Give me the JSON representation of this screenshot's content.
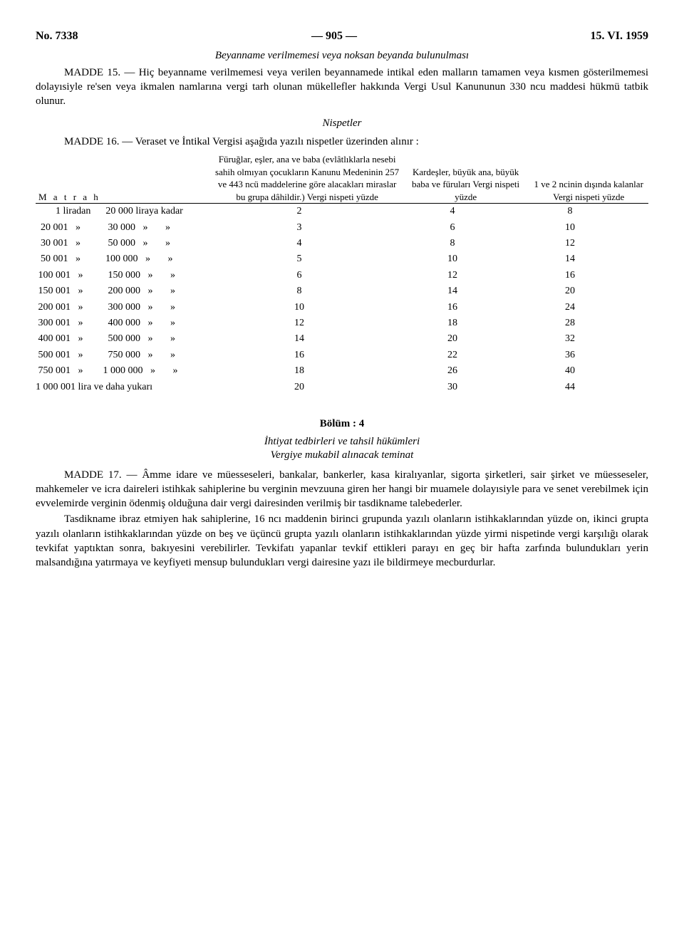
{
  "header": {
    "left": "No. 7338",
    "center": "— 905 —",
    "right": "15. VI. 1959"
  },
  "subtitle": "Beyanname verilmemesi veya noksan beyanda bulunulması",
  "p_madde15": "MADDE 15. — Hiç beyanname verilmemesi veya verilen beyannamede intikal eden malların tamamen veya kısmen gösterilmemesi dolayısiyle re'sen veya ikmalen namlarına vergi tarh olunan mükellefler hakkında Vergi Usul Kanununun 330 ncu maddesi hükmü tatbik olunur.",
  "nispetler": "Nispetler",
  "p_madde16": "MADDE 16. — Veraset ve İntikal Vergisi aşağıda yazılı nispetler üzerinden alınır :",
  "table": {
    "h_matrah": "M a t r a h",
    "h_col2": "Füruğlar, eşler, ana ve baba (evlâtlıklarla nesebi sahih olmıyan çocukların Kanunu Medeninin 257 ve 443 ncü maddelerine göre alacakları miraslar bu grupa dâhildir.) Vergi nispeti yüzde",
    "h_col3": "Kardeşler, büyük ana, büyük baba ve füruları Vergi nispeti yüzde",
    "h_col4": "1 ve 2 ncinin dışında kalanlar Vergi nispeti yüzde",
    "rows": [
      {
        "m": "        1 liradan      20 000 liraya kadar",
        "a": "2",
        "b": "4",
        "c": "8"
      },
      {
        "m": "  20 001   »           30 000   »       »",
        "a": "3",
        "b": "6",
        "c": "10"
      },
      {
        "m": "  30 001   »           50 000   »       »",
        "a": "4",
        "b": "8",
        "c": "12"
      },
      {
        "m": "  50 001   »          100 000   »       »",
        "a": "5",
        "b": "10",
        "c": "14"
      },
      {
        "m": " 100 001   »          150 000   »       »",
        "a": "6",
        "b": "12",
        "c": "16"
      },
      {
        "m": " 150 001   »          200 000   »       »",
        "a": "8",
        "b": "14",
        "c": "20"
      },
      {
        "m": " 200 001   »          300 000   »       »",
        "a": "10",
        "b": "16",
        "c": "24"
      },
      {
        "m": " 300 001   »          400 000   »       »",
        "a": "12",
        "b": "18",
        "c": "28"
      },
      {
        "m": " 400 001   »          500 000   »       »",
        "a": "14",
        "b": "20",
        "c": "32"
      },
      {
        "m": " 500 001   »          750 000   »       »",
        "a": "16",
        "b": "22",
        "c": "36"
      },
      {
        "m": " 750 001   »        1 000 000   »       »",
        "a": "18",
        "b": "26",
        "c": "40"
      },
      {
        "m": "1 000 001 lira ve daha yukarı",
        "a": "20",
        "b": "30",
        "c": "44"
      }
    ]
  },
  "bolum4": "Bölüm : 4",
  "bolum4_sub1": "İhtiyat tedbirleri ve tahsil hükümleri",
  "bolum4_sub2": "Vergiye mukabil alınacak teminat",
  "p_madde17_1": "MADDE 17. — Âmme idare ve müesseseleri, bankalar, bankerler, kasa kiralıyanlar, sigorta şirketleri, sair şirket ve müesseseler, mahkemeler ve icra daireleri istihkak sahiplerine bu verginin mevzuuna giren her hangi bir muamele dolayısiyle para ve senet verebilmek için evvelemirde verginin ödenmiş olduğuna dair vergi dairesinden verilmiş bir tasdikname talebederler.",
  "p_madde17_2": "Tasdikname ibraz etmiyen hak sahiplerine, 16 ncı maddenin birinci grupunda yazılı olanların istihkaklarından yüzde on, ikinci grupta yazılı olanların istihkaklarından yüzde on beş ve üçüncü grupta yazılı olanların istihkaklarından yüzde yirmi nispetinde vergi karşılığı olarak tevkifat yaptıktan sonra, bakıyesini verebilirler. Tevkifatı yapanlar tevkif ettikleri parayı en geç bir hafta zarfında bulundukları yerin malsandığına yatırmaya ve keyfiyeti mensup bulundukları vergi dairesine yazı ile bildirmeye mecburdurlar."
}
